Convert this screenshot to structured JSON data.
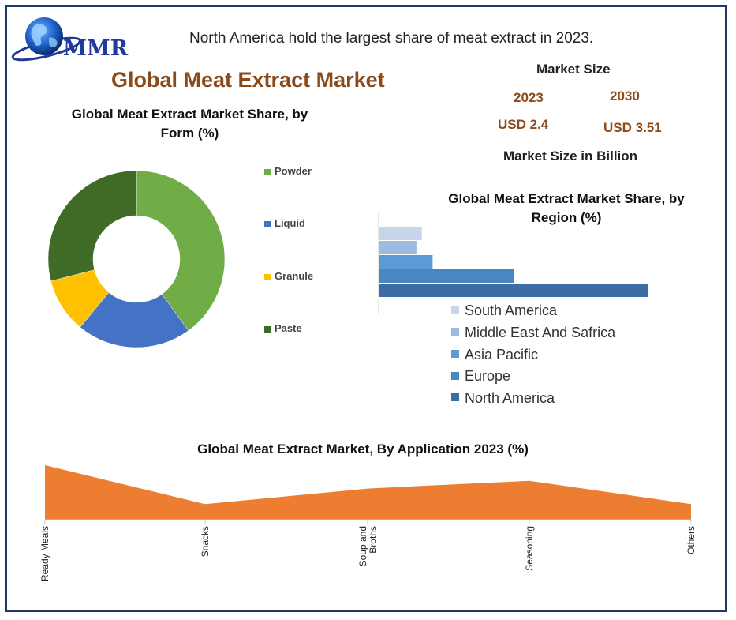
{
  "header": {
    "logo_text": "MMR",
    "headline": "North America hold the largest share of meat extract in 2023.",
    "title": "Global Meat Extract Market"
  },
  "market_size": {
    "heading": "Market Size",
    "year_start": "2023",
    "year_end": "2030",
    "value_start": "USD 2.4",
    "value_end": "USD 3.51",
    "unit_note": "Market Size in Billion"
  },
  "colors": {
    "frame": "#1f3a6a",
    "title_brown": "#8a4a1a",
    "area_orange": "#ed7d31"
  },
  "chart_data": [
    {
      "type": "pie",
      "variant": "donut",
      "title": "Global Meat Extract Market  Share, by Form (%)",
      "labels": [
        "Powder",
        "Liquid",
        "Granule",
        "Paste"
      ],
      "values": [
        40,
        21,
        10,
        29
      ],
      "colors": [
        "#70ad47",
        "#4472c4",
        "#ffc000",
        "#3f6b26"
      ],
      "legend_position": "right"
    },
    {
      "type": "bar",
      "orientation": "horizontal",
      "title": "Global Meat Extract Market  Share, by Region (%)",
      "categories": [
        "South America",
        "Middle East And Safrica",
        "Asia Pacific",
        "Europe",
        "North America"
      ],
      "values": [
        8,
        7,
        10,
        25,
        50
      ],
      "colors": [
        "#c6d5ea",
        "#9dbbe0",
        "#5b9bd5",
        "#4a86c0",
        "#3d6ea3"
      ],
      "xlim": [
        0,
        52
      ],
      "legend_position": "bottom",
      "grid": false
    },
    {
      "type": "area",
      "title": "Global Meat Extract Market, By Application 2023 (%)",
      "categories": [
        "Ready Meals",
        "Snacks",
        "Soup and Broths",
        "Seasoning",
        "Others"
      ],
      "values": [
        35,
        10,
        20,
        25,
        10
      ],
      "ylim": [
        0,
        36
      ],
      "color": "#ed7d31"
    }
  ]
}
